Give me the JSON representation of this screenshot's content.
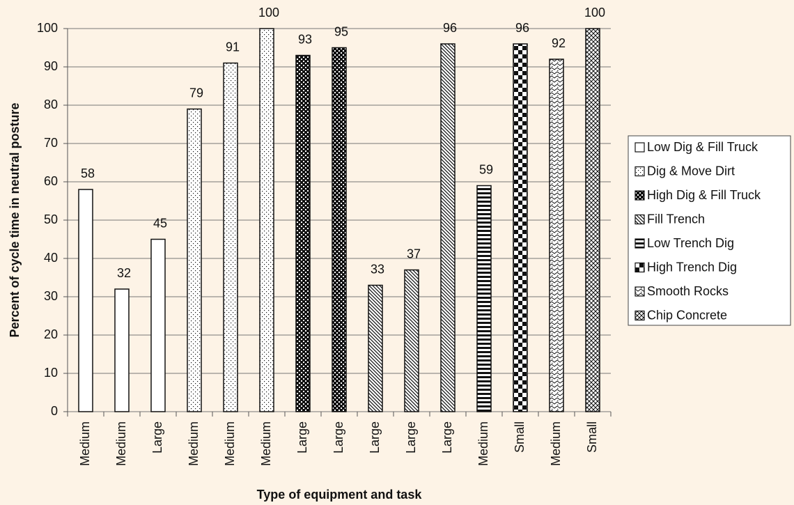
{
  "chart_data": {
    "type": "bar",
    "x_label": "Type of equipment and task",
    "y_label": "Percent of cycle time in neutral posture",
    "categories": [
      "Medium",
      "Medium",
      "Large",
      "Medium",
      "Medium",
      "Medium",
      "Large",
      "Large",
      "Large",
      "Large",
      "Large",
      "Medium",
      "Small",
      "Medium",
      "Small"
    ],
    "series": [
      {
        "name": "Low Dig & Fill Truck",
        "color": "#111111",
        "values": [
          58,
          32,
          45,
          null,
          null,
          null,
          null,
          null,
          null,
          null,
          null,
          null,
          null,
          null,
          null
        ]
      },
      {
        "name": "Dig & Move Dirt",
        "color": "#111111",
        "values": [
          null,
          null,
          null,
          79,
          91,
          100,
          null,
          null,
          null,
          null,
          null,
          null,
          null,
          null,
          null
        ]
      },
      {
        "name": "High Dig & Fill Truck",
        "color": "#111111",
        "values": [
          null,
          null,
          null,
          null,
          null,
          null,
          93,
          95,
          null,
          null,
          null,
          null,
          null,
          null,
          null
        ]
      },
      {
        "name": "Fill Trench",
        "color": "#111111",
        "values": [
          null,
          null,
          null,
          null,
          null,
          null,
          null,
          null,
          33,
          37,
          96,
          null,
          null,
          null,
          null
        ]
      },
      {
        "name": "Low Trench Dig",
        "color": "#111111",
        "values": [
          null,
          null,
          null,
          null,
          null,
          null,
          null,
          null,
          null,
          null,
          null,
          59,
          null,
          null,
          null
        ]
      },
      {
        "name": "High Trench Dig",
        "color": "#111111",
        "values": [
          null,
          null,
          null,
          null,
          null,
          null,
          null,
          null,
          null,
          null,
          null,
          null,
          96,
          null,
          null
        ]
      },
      {
        "name": "Smooth Rocks",
        "color": "#111111",
        "values": [
          null,
          null,
          null,
          null,
          null,
          null,
          null,
          null,
          null,
          null,
          null,
          null,
          null,
          92,
          null
        ]
      },
      {
        "name": "Chip Concrete",
        "color": "#111111",
        "values": [
          null,
          null,
          null,
          null,
          null,
          null,
          null,
          null,
          null,
          null,
          null,
          null,
          null,
          null,
          100
        ]
      }
    ],
    "ylim": [
      0,
      100
    ],
    "yticks": [
      0,
      10,
      20,
      30,
      40,
      50,
      60,
      70,
      80,
      90,
      100
    ],
    "grid": true,
    "legend": "right"
  }
}
